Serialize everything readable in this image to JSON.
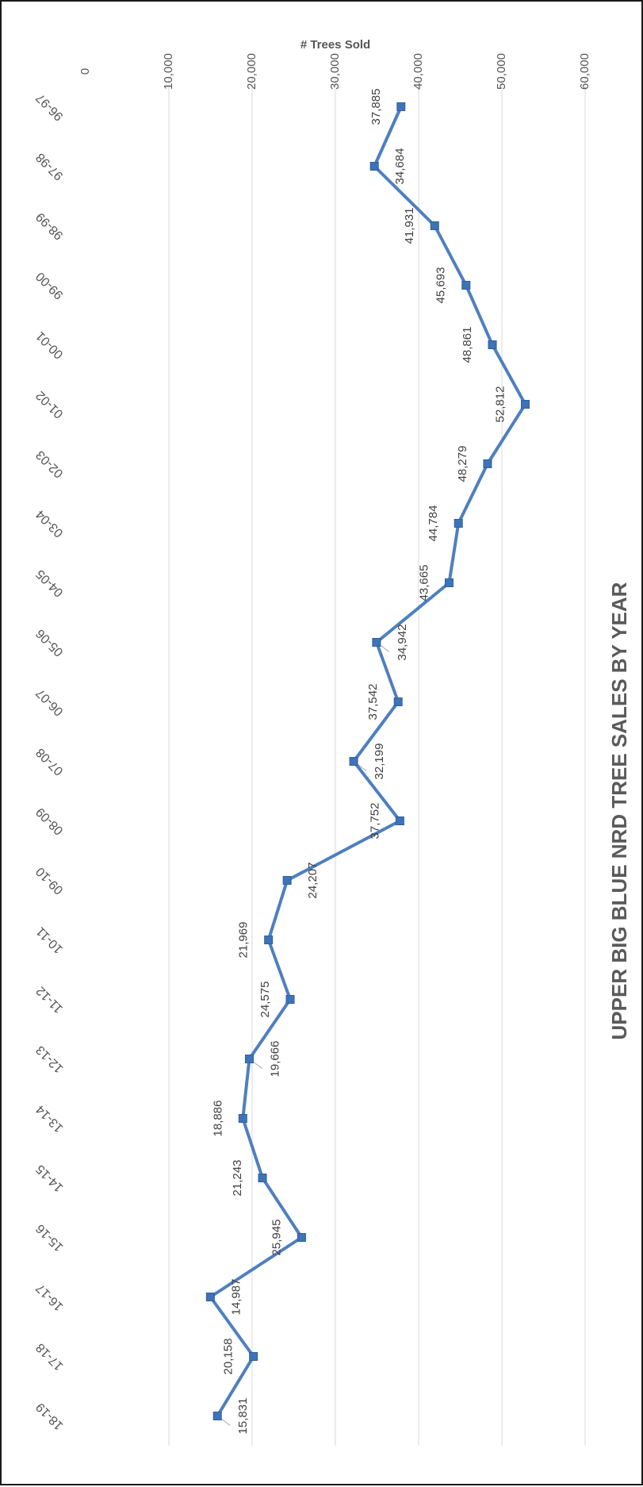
{
  "chart_data": {
    "type": "line",
    "title": "UPPER BIG BLUE NRD TREE SALES BY YEAR",
    "xlabel": "",
    "ylabel": "# Trees Sold",
    "ylim": [
      0,
      60000
    ],
    "yticks": [
      "0",
      "10,000",
      "20,000",
      "30,000",
      "40,000",
      "50,000",
      "60,000"
    ],
    "grid": true,
    "legend": "none",
    "line_color": "#4e7fc0",
    "marker_color": "#3f73b8",
    "categories": [
      "96-97",
      "97-98",
      "98-99",
      "99-00",
      "00-01",
      "01-02",
      "02-03",
      "03-04",
      "04-05",
      "05-06",
      "06-07",
      "07-08",
      "08-09",
      "09-10",
      "10-11",
      "11-12",
      "12-13",
      "13-14",
      "14-15",
      "15-16",
      "16-17",
      "17-18",
      "18-19"
    ],
    "series": [
      {
        "values": [
          37885,
          34684,
          41931,
          45693,
          48861,
          52812,
          48279,
          44784,
          43665,
          34942,
          37542,
          32199,
          37752,
          24207,
          21969,
          24575,
          19666,
          18886,
          21243,
          25945,
          14987,
          20158,
          15831
        ],
        "labels": [
          "37,885",
          "34,684",
          "41,931",
          "45,693",
          "48,861",
          "52,812",
          "48,279",
          "44,784",
          "43,665",
          "34,942",
          "37,542",
          "32,199",
          "37,752",
          "24,207",
          "21,969",
          "24,575",
          "19,666",
          "18,886",
          "21,243",
          "25,945",
          "14,987",
          "20,158",
          "15,831"
        ]
      }
    ]
  }
}
